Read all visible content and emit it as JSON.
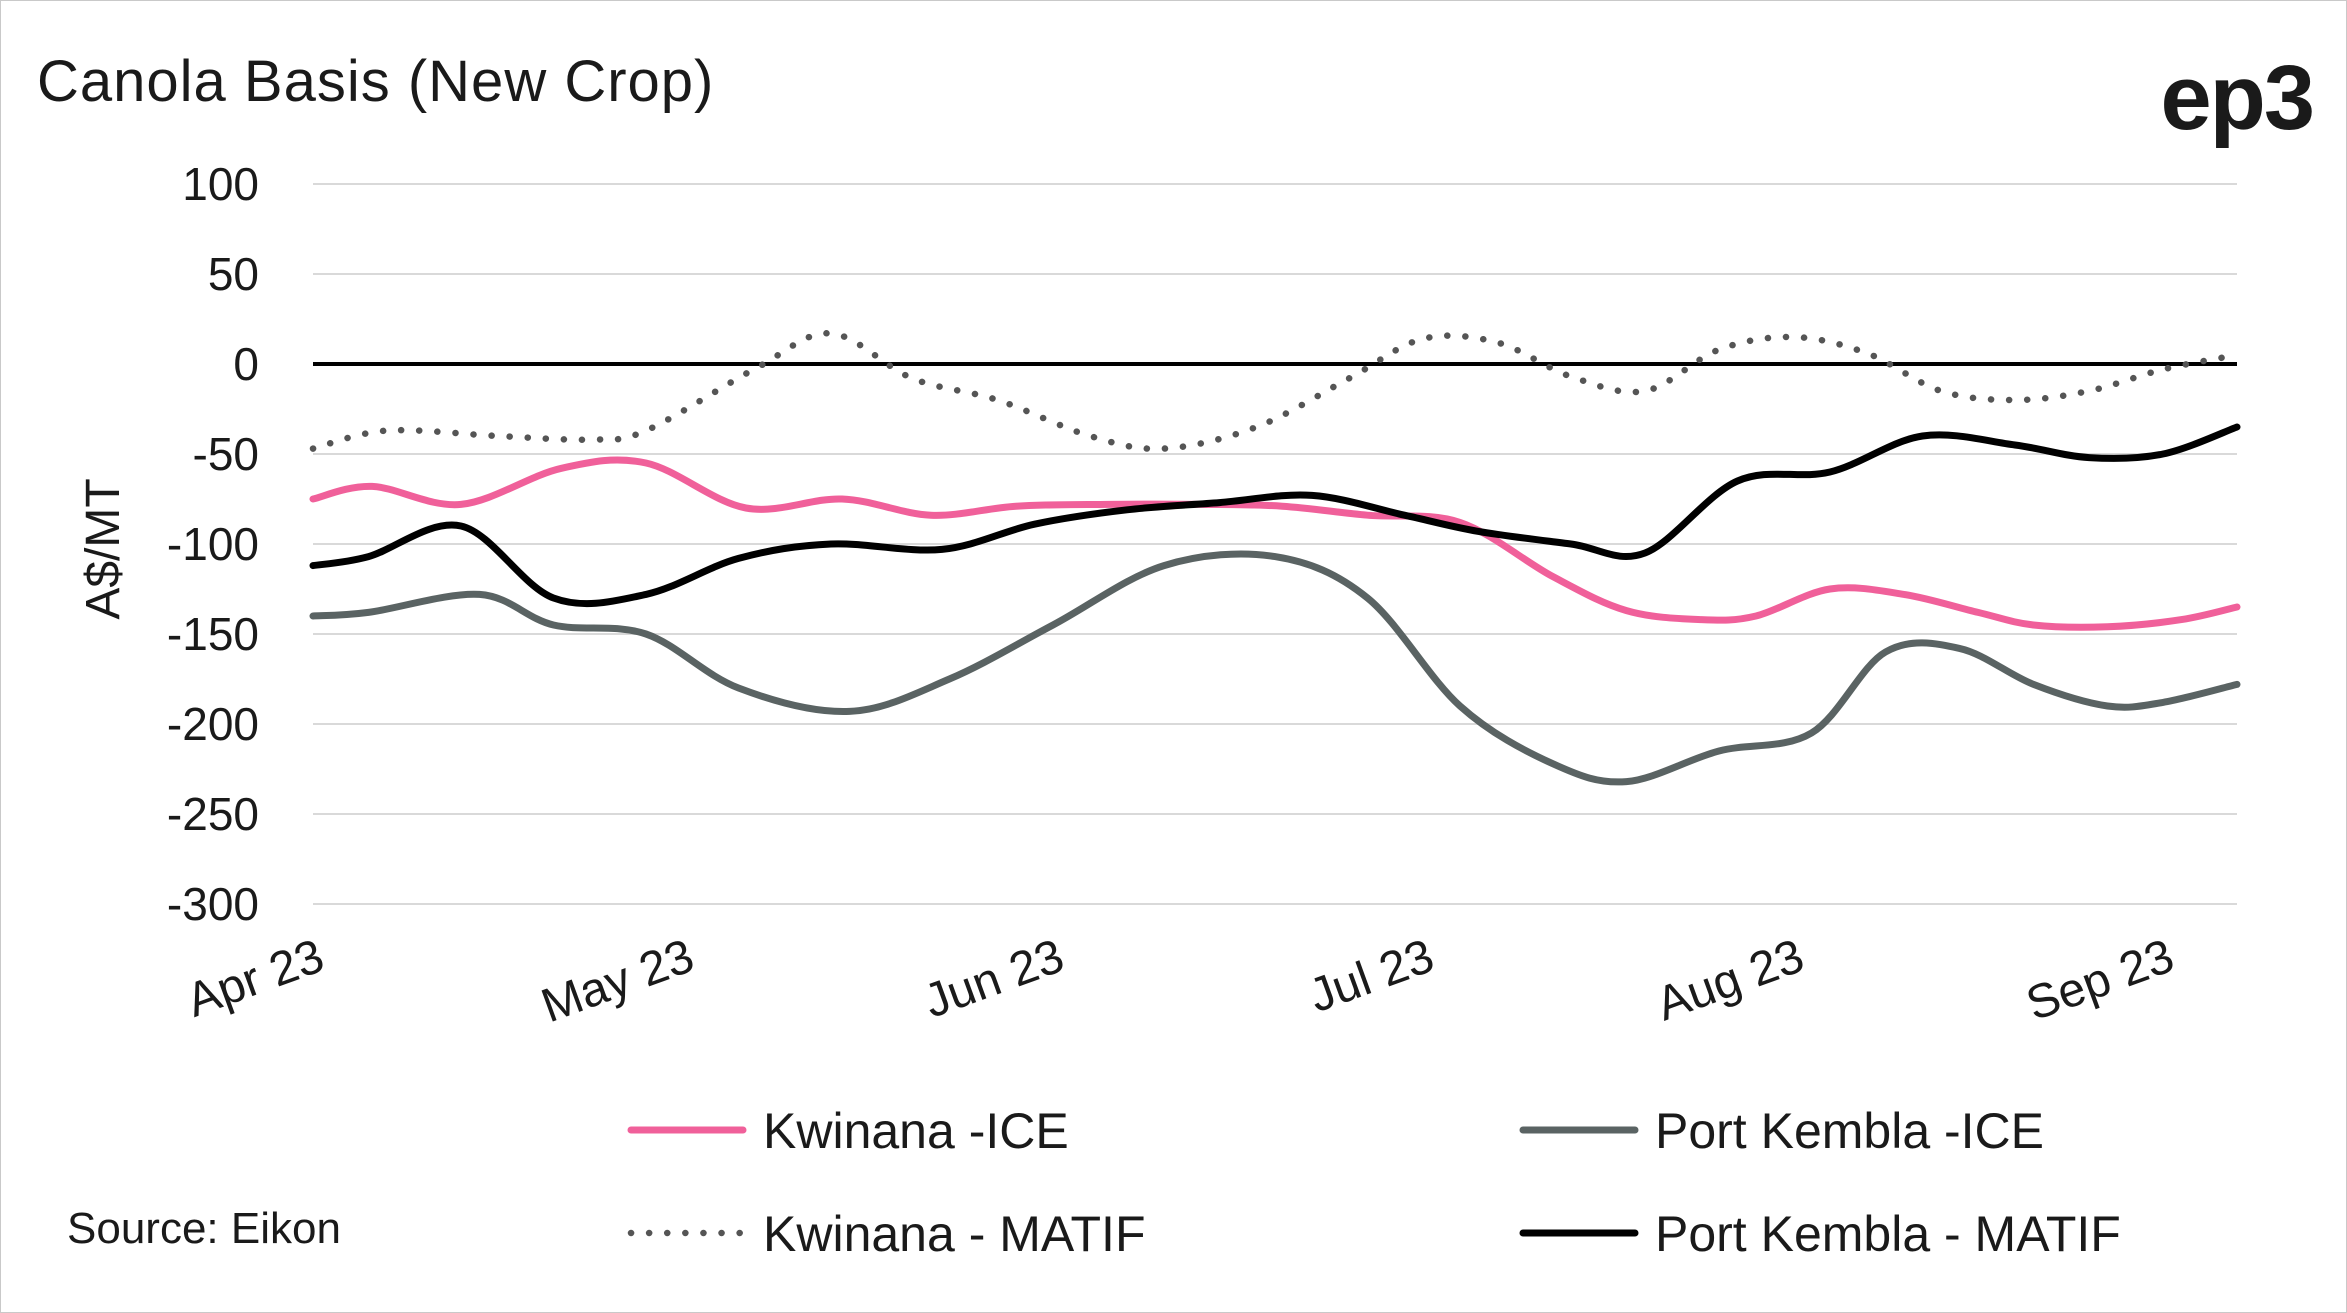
{
  "chart_data": {
    "type": "line",
    "title": "Canola Basis (New Crop)",
    "brand": "ep3",
    "ylabel": "A$/MT",
    "xlabel": "",
    "source": "Source: Eikon",
    "ylim": [
      -300,
      100
    ],
    "yticks": [
      100,
      50,
      0,
      -50,
      -100,
      -150,
      -200,
      -250,
      -300
    ],
    "xlim": [
      0,
      5.2
    ],
    "xticks": [
      {
        "x": 0,
        "label": "Apr 23"
      },
      {
        "x": 1,
        "label": "May 23"
      },
      {
        "x": 2,
        "label": "Jun 23"
      },
      {
        "x": 3,
        "label": "Jul 23"
      },
      {
        "x": 4,
        "label": "Aug 23"
      },
      {
        "x": 5,
        "label": "Sep 23"
      }
    ],
    "grid": true,
    "series": [
      {
        "name": "Kwinana -ICE",
        "color": "#f0609a",
        "style": "solid",
        "x": [
          0,
          0.16,
          0.4,
          0.67,
          0.9,
          1.17,
          1.43,
          1.67,
          1.9,
          2.15,
          2.4,
          2.62,
          2.85,
          3.1,
          3.35,
          3.55,
          3.75,
          3.9,
          4.1,
          4.3,
          4.5,
          4.65,
          4.85,
          5.05,
          5.2
        ],
        "y": [
          -75,
          -68,
          -78,
          -58,
          -55,
          -80,
          -75,
          -84,
          -79,
          -78,
          -78,
          -79,
          -84,
          -88,
          -118,
          -137,
          -142,
          -140,
          -125,
          -128,
          -138,
          -145,
          -146,
          -142,
          -135
        ]
      },
      {
        "name": "Kwinana - MATIF",
        "color": "#555555",
        "style": "dotted",
        "x": [
          0,
          0.2,
          0.5,
          0.75,
          0.9,
          1.2,
          1.4,
          1.62,
          1.85,
          2.1,
          2.3,
          2.55,
          2.8,
          3.0,
          3.2,
          3.4,
          3.6,
          3.8,
          4.0,
          4.2,
          4.4,
          4.6,
          4.8,
          5.0,
          5.2
        ],
        "y": [
          -47,
          -37,
          -40,
          -42,
          -37,
          -2,
          17,
          -8,
          -20,
          -40,
          -47,
          -35,
          -8,
          14,
          12,
          -7,
          -15,
          8,
          15,
          6,
          -15,
          -20,
          -15,
          -3,
          5
        ]
      },
      {
        "name": "Port Kembla -ICE",
        "color": "#5a6363",
        "style": "solid",
        "x": [
          0,
          0.15,
          0.45,
          0.65,
          0.9,
          1.15,
          1.45,
          1.72,
          2.0,
          2.3,
          2.6,
          2.85,
          3.1,
          3.35,
          3.55,
          3.8,
          4.05,
          4.25,
          4.45,
          4.65,
          4.85,
          5.0,
          5.2
        ],
        "y": [
          -140,
          -138,
          -128,
          -145,
          -150,
          -180,
          -193,
          -175,
          -145,
          -112,
          -107,
          -130,
          -190,
          -222,
          -232,
          -215,
          -205,
          -160,
          -158,
          -178,
          -190,
          -188,
          -178
        ]
      },
      {
        "name": "Port Kembla - MATIF",
        "color": "#000000",
        "style": "solid",
        "x": [
          0,
          0.15,
          0.4,
          0.65,
          0.9,
          1.15,
          1.4,
          1.7,
          1.95,
          2.2,
          2.45,
          2.7,
          2.95,
          3.15,
          3.4,
          3.6,
          3.85,
          4.1,
          4.35,
          4.6,
          4.8,
          5.0,
          5.2
        ],
        "y": [
          -112,
          -107,
          -90,
          -130,
          -128,
          -108,
          -100,
          -103,
          -89,
          -81,
          -77,
          -73,
          -84,
          -93,
          -100,
          -105,
          -65,
          -60,
          -40,
          -45,
          -52,
          -50,
          -35
        ]
      }
    ],
    "legend": [
      {
        "label": "Kwinana -ICE",
        "color": "#f0609a",
        "style": "solid"
      },
      {
        "label": "Port Kembla -ICE",
        "color": "#5a6363",
        "style": "solid"
      },
      {
        "label": "Kwinana - MATIF",
        "color": "#555555",
        "style": "dotted"
      },
      {
        "label": "Port Kembla - MATIF",
        "color": "#000000",
        "style": "solid"
      }
    ]
  }
}
